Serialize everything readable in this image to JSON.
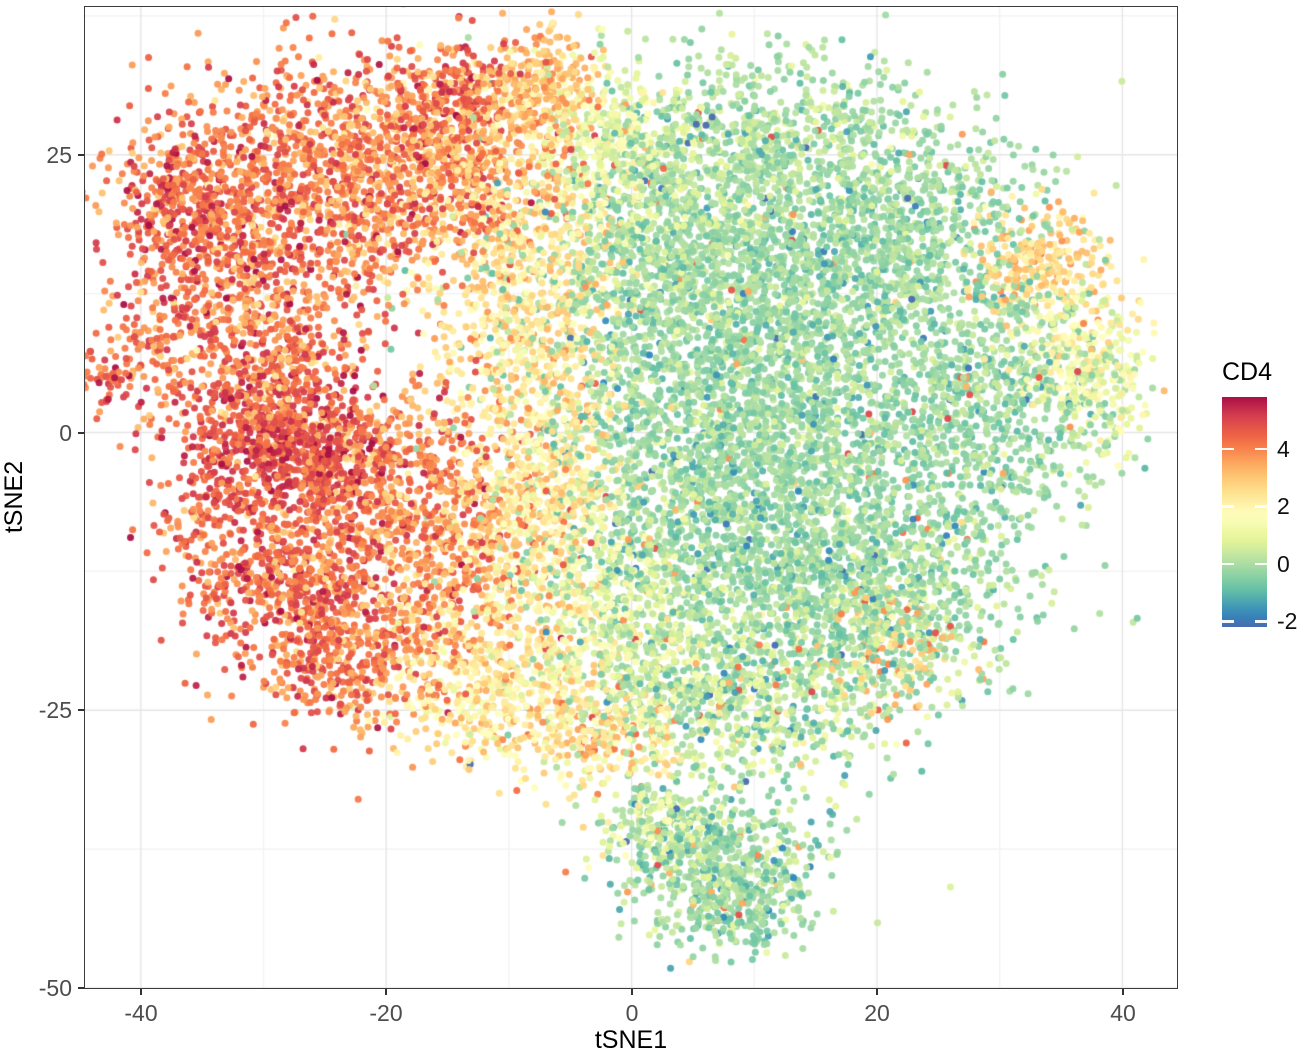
{
  "chart_data": {
    "type": "scatter",
    "title": "",
    "xlabel": "tSNE1",
    "ylabel": "tSNE2",
    "x_ticks": [
      -40,
      -20,
      0,
      20,
      40
    ],
    "y_ticks": [
      25,
      0,
      -25,
      -50
    ],
    "x_minor": [
      -30,
      -10,
      10,
      30
    ],
    "y_minor": [
      37.5,
      12.5,
      -12.5,
      -37.5
    ],
    "xlim": [
      -44.55,
      44.45
    ],
    "ylim": [
      -50,
      38.3
    ],
    "grid": {
      "major_color": "#E5E5E5",
      "minor_color": "#F2F2F2",
      "line_width": 1.4
    },
    "panel_border_color": "#3B3B3B",
    "point": {
      "radius": 3.5,
      "alpha": 0.95
    },
    "seed": 7,
    "colorbar": {
      "title": "CD4",
      "ticks": [
        4,
        2,
        0,
        -2
      ],
      "range": [
        -2.2,
        5.8
      ],
      "palette_domain": [
        -2.6,
        6.0
      ],
      "palette": [
        "#5E4FA2",
        "#3288BD",
        "#66C2A5",
        "#ABDDA4",
        "#E6F598",
        "#FFFFBF",
        "#FEE08B",
        "#FDAE61",
        "#F46D43",
        "#D53E4F",
        "#9E0142"
      ],
      "legend_position": "right"
    },
    "outliers": {
      "low_range": [
        -2.3,
        -0.9
      ],
      "high_range": [
        2.6,
        5.0
      ]
    },
    "clusters": [
      {
        "x": -24,
        "y": 23,
        "sx": 6.5,
        "sy": 5.5,
        "n": 1150,
        "cd4": 4.1,
        "sd": 0.75,
        "pl": 0,
        "ph": 0
      },
      {
        "x": -33,
        "y": 16,
        "sx": 4.0,
        "sy": 4.5,
        "n": 430,
        "cd4": 4.4,
        "sd": 0.7,
        "pl": 0,
        "ph": 0
      },
      {
        "x": -37,
        "y": 21.5,
        "sx": 2.8,
        "sy": 3.0,
        "n": 230,
        "cd4": 4.4,
        "sd": 0.7,
        "pl": 0,
        "ph": 0
      },
      {
        "x": -14,
        "y": 25.5,
        "sx": 5.0,
        "sy": 4.5,
        "n": 620,
        "cd4": 3.5,
        "sd": 0.8,
        "pl": 0,
        "ph": 0
      },
      {
        "x": -14.5,
        "y": 30.5,
        "sx": 2.2,
        "sy": 2.2,
        "n": 150,
        "cd4": 4.8,
        "sd": 0.5,
        "pl": 0,
        "ph": 0
      },
      {
        "x": -7.5,
        "y": 31,
        "sx": 2.6,
        "sy": 2.8,
        "n": 240,
        "cd4": 3.0,
        "sd": 0.6,
        "pl": 0,
        "ph": 0
      },
      {
        "x": -29.5,
        "y": 6,
        "sx": 4.5,
        "sy": 4.5,
        "n": 500,
        "cd4": 4.1,
        "sd": 0.85,
        "pl": 0,
        "ph": 0
      },
      {
        "x": -28,
        "y": -1.5,
        "sx": 4.0,
        "sy": 3.5,
        "n": 650,
        "cd4": 4.8,
        "sd": 0.55,
        "pl": 0,
        "ph": 0
      },
      {
        "x": -20,
        "y": -4,
        "sx": 4.5,
        "sy": 4.0,
        "n": 500,
        "cd4": 4.0,
        "sd": 0.75,
        "pl": 0,
        "ph": 0
      },
      {
        "x": -27,
        "y": -13,
        "sx": 4.0,
        "sy": 4.0,
        "n": 520,
        "cd4": 4.3,
        "sd": 0.7,
        "pl": 0,
        "ph": 0
      },
      {
        "x": -22.5,
        "y": -20,
        "sx": 4.0,
        "sy": 3.5,
        "n": 420,
        "cd4": 4.1,
        "sd": 0.7,
        "pl": 0,
        "ph": 0
      },
      {
        "x": -14,
        "y": -11,
        "sx": 4.0,
        "sy": 5.0,
        "n": 420,
        "cd4": 3.6,
        "sd": 0.8,
        "pl": 0,
        "ph": 0
      },
      {
        "x": -42.5,
        "y": 5,
        "sx": 1.2,
        "sy": 1.6,
        "n": 45,
        "cd4": 4.2,
        "sd": 0.6,
        "pl": 0,
        "ph": 0
      },
      {
        "x": -38.5,
        "y": 8,
        "sx": 2.0,
        "sy": 3.5,
        "n": 90,
        "cd4": 4.1,
        "sd": 0.7,
        "pl": 0,
        "ph": 0
      },
      {
        "x": -34,
        "y": -8,
        "sx": 3.0,
        "sy": 4.5,
        "n": 170,
        "cd4": 4.2,
        "sd": 0.7,
        "pl": 0,
        "ph": 0
      },
      {
        "x": -9,
        "y": 14,
        "sx": 3.8,
        "sy": 7.5,
        "n": 700,
        "cd4": 2.4,
        "sd": 0.6,
        "pl": 0,
        "ph": 0.02
      },
      {
        "x": -7.5,
        "y": -6,
        "sx": 3.8,
        "sy": 7.5,
        "n": 700,
        "cd4": 2.2,
        "sd": 0.6,
        "pl": 0,
        "ph": 0.02
      },
      {
        "x": -11,
        "y": -22.5,
        "sx": 4.5,
        "sy": 3.8,
        "n": 460,
        "cd4": 2.2,
        "sd": 0.7,
        "pl": 0,
        "ph": 0.025
      },
      {
        "x": -3,
        "y": -27.5,
        "sx": 3.5,
        "sy": 2.2,
        "n": 210,
        "cd4": 2.5,
        "sd": 0.8,
        "pl": 0,
        "ph": 0.03
      },
      {
        "x": -2,
        "y": 26,
        "sx": 3.0,
        "sy": 3.5,
        "n": 240,
        "cd4": 1.2,
        "sd": 0.6,
        "pl": 0.01,
        "ph": 0.01
      },
      {
        "x": 8,
        "y": 10,
        "sx": 8.5,
        "sy": 8.5,
        "n": 2300,
        "cd4": -0.2,
        "sd": 0.45,
        "pl": 0.02,
        "ph": 0.01
      },
      {
        "x": 10,
        "y": -8,
        "sx": 8.5,
        "sy": 7.5,
        "n": 2100,
        "cd4": -0.2,
        "sd": 0.45,
        "pl": 0.02,
        "ph": 0.01
      },
      {
        "x": 22,
        "y": 18,
        "sx": 6.0,
        "sy": 5.5,
        "n": 820,
        "cd4": -0.15,
        "sd": 0.45,
        "pl": 0.015,
        "ph": 0.01
      },
      {
        "x": 28,
        "y": 2,
        "sx": 5.5,
        "sy": 6.5,
        "n": 820,
        "cd4": -0.2,
        "sd": 0.45,
        "pl": 0.015,
        "ph": 0.012
      },
      {
        "x": 20,
        "y": -15,
        "sx": 5.5,
        "sy": 4.5,
        "n": 620,
        "cd4": -0.05,
        "sd": 0.5,
        "pl": 0.012,
        "ph": 0.015
      },
      {
        "x": 2.5,
        "y": 21,
        "sx": 4.5,
        "sy": 5.5,
        "n": 620,
        "cd4": 0.3,
        "sd": 0.6,
        "pl": 0.01,
        "ph": 0.01
      },
      {
        "x": 12,
        "y": 27,
        "sx": 6.0,
        "sy": 3.8,
        "n": 460,
        "cd4": 0.1,
        "sd": 0.5,
        "pl": 0.012,
        "ph": 0.01
      },
      {
        "x": 33,
        "y": 15,
        "sx": 2.8,
        "sy": 2.4,
        "n": 250,
        "cd4": 2.8,
        "sd": 0.6,
        "pl": 0,
        "ph": 0
      },
      {
        "x": 36,
        "y": 7.5,
        "sx": 2.8,
        "sy": 3.0,
        "n": 220,
        "cd4": 1.6,
        "sd": 0.7,
        "pl": 0,
        "ph": 0
      },
      {
        "x": 38,
        "y": 2.5,
        "sx": 2.2,
        "sy": 3.0,
        "n": 130,
        "cd4": 0.8,
        "sd": 0.6,
        "pl": 0,
        "ph": 0
      },
      {
        "x": 8,
        "y": -24.5,
        "sx": 6.5,
        "sy": 3.5,
        "n": 700,
        "cd4": 0.3,
        "sd": 0.7,
        "pl": 0.012,
        "ph": 0.03
      },
      {
        "x": -0.5,
        "y": -17.5,
        "sx": 3.8,
        "sy": 4.5,
        "n": 430,
        "cd4": 0.9,
        "sd": 0.7,
        "pl": 0.01,
        "ph": 0.015
      },
      {
        "x": 21,
        "y": -19,
        "sx": 3.0,
        "sy": 2.5,
        "n": 130,
        "cd4": 2.9,
        "sd": 0.8,
        "pl": 0,
        "ph": 0
      },
      {
        "x": 7,
        "y": -39,
        "sx": 4.2,
        "sy": 3.2,
        "n": 600,
        "cd4": -0.1,
        "sd": 0.55,
        "pl": 0.012,
        "ph": 0.025
      },
      {
        "x": 2.5,
        "y": -35,
        "sx": 2.4,
        "sy": 2.0,
        "n": 170,
        "cd4": 0.5,
        "sd": 0.8,
        "pl": 0.01,
        "ph": 0.03
      },
      {
        "x": 9,
        "y": -43.5,
        "sx": 2.6,
        "sy": 1.8,
        "n": 130,
        "cd4": -0.1,
        "sd": 0.5,
        "pl": 0.01,
        "ph": 0.02
      }
    ]
  }
}
